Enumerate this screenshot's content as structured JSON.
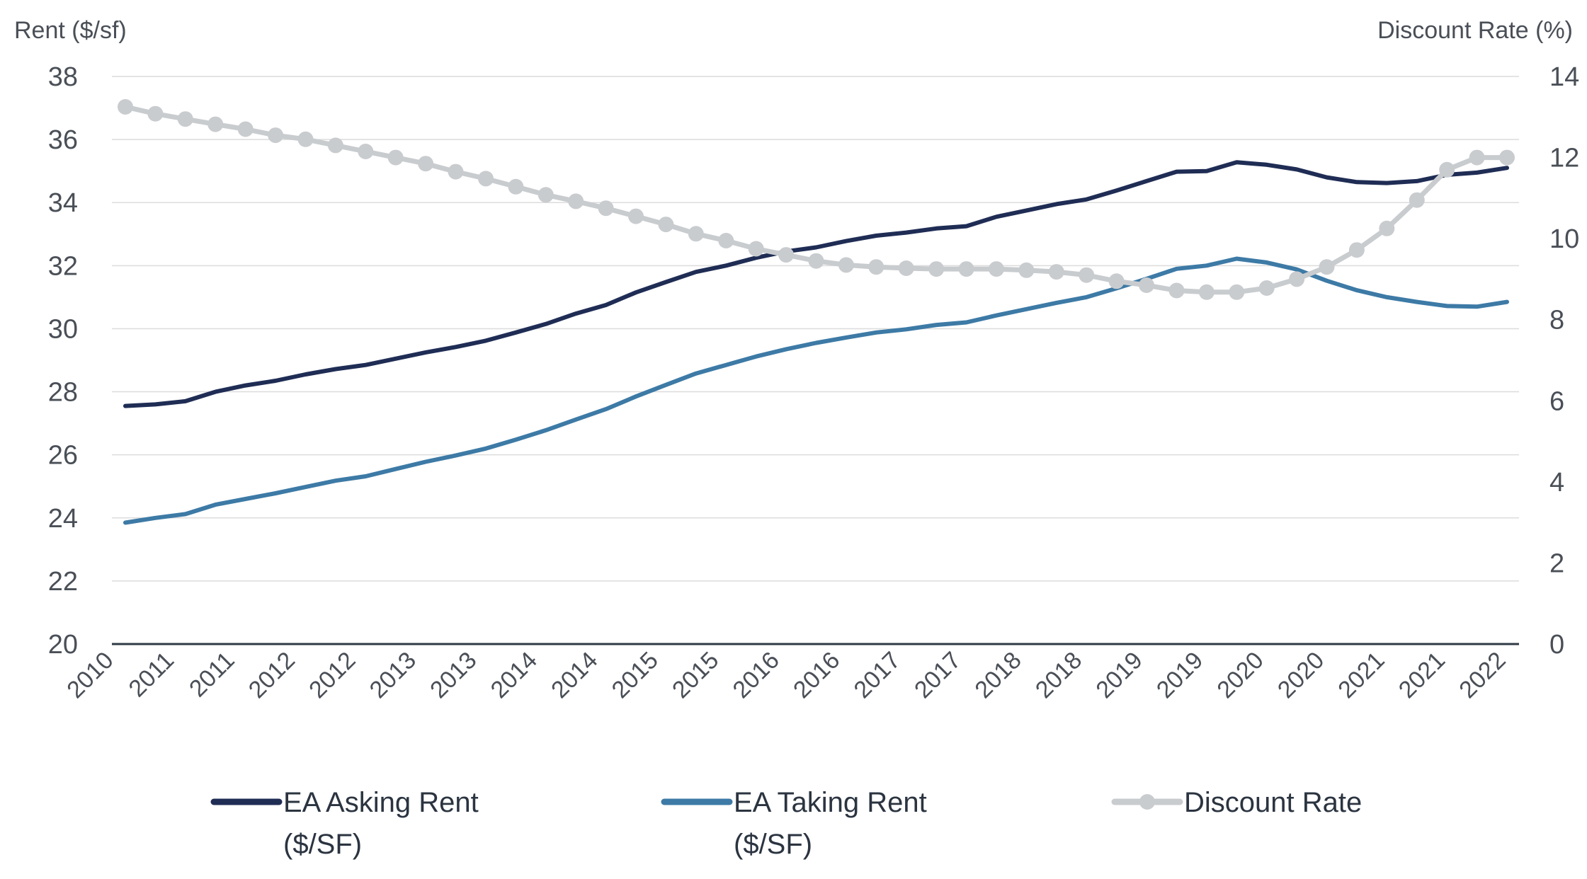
{
  "chart_data": {
    "type": "line",
    "title": "",
    "ylabel_left": "Rent ($/sf)",
    "ylabel_right": "Discount Rate (%)",
    "ylim_left": [
      20,
      38
    ],
    "ylim_right": [
      0,
      14
    ],
    "yticks_left": [
      "20",
      "22",
      "24",
      "26",
      "28",
      "30",
      "32",
      "34",
      "36",
      "38"
    ],
    "yticks_right": [
      "0",
      "2",
      "4",
      "6",
      "8",
      "10",
      "12",
      "14"
    ],
    "x_tick_labels": [
      "2010",
      "2011",
      "2011",
      "2012",
      "2012",
      "2013",
      "2013",
      "2014",
      "2014",
      "2015",
      "2015",
      "2016",
      "2016",
      "2017",
      "2017",
      "2018",
      "2018",
      "2019",
      "2019",
      "2020",
      "2020",
      "2021",
      "2021",
      "2022"
    ],
    "grid": true,
    "legend_position": "bottom",
    "series": [
      {
        "name": "EA Asking Rent ($/SF)",
        "legend_line1": "EA Asking Rent",
        "legend_line2": "($/SF)",
        "axis": "left",
        "color": "#1f2d55",
        "markers": false,
        "values": [
          27.55,
          27.6,
          27.7,
          28.0,
          28.2,
          28.35,
          28.55,
          28.72,
          28.85,
          29.05,
          29.25,
          29.42,
          29.62,
          29.88,
          30.15,
          30.48,
          30.75,
          31.15,
          31.48,
          31.8,
          32.0,
          32.25,
          32.45,
          32.58,
          32.78,
          32.95,
          33.05,
          33.18,
          33.25,
          33.55,
          33.75,
          33.95,
          34.1,
          34.38,
          34.68,
          34.98,
          35.0,
          35.28,
          35.2,
          35.05,
          34.8,
          34.65,
          34.62,
          34.68,
          34.88,
          34.95,
          35.1
        ]
      },
      {
        "name": "EA Taking Rent ($/SF)",
        "legend_line1": "EA Taking Rent",
        "legend_line2": "($/SF)",
        "axis": "left",
        "color": "#3d7aa6",
        "markers": false,
        "values": [
          23.85,
          24.0,
          24.12,
          24.42,
          24.6,
          24.78,
          24.98,
          25.18,
          25.32,
          25.55,
          25.78,
          25.98,
          26.2,
          26.48,
          26.78,
          27.12,
          27.45,
          27.85,
          28.22,
          28.58,
          28.85,
          29.12,
          29.35,
          29.55,
          29.72,
          29.88,
          29.98,
          30.12,
          30.2,
          30.42,
          30.62,
          30.82,
          31.0,
          31.28,
          31.58,
          31.9,
          32.0,
          32.22,
          32.1,
          31.88,
          31.52,
          31.22,
          31.0,
          30.85,
          30.72,
          30.7,
          30.85
        ]
      },
      {
        "name": "Discount Rate",
        "legend_line1": "Discount Rate",
        "legend_line2": "",
        "axis": "right",
        "color": "#c9cccf",
        "markers": true,
        "values": [
          13.25,
          13.08,
          12.95,
          12.82,
          12.7,
          12.55,
          12.45,
          12.3,
          12.15,
          12.0,
          11.85,
          11.65,
          11.48,
          11.28,
          11.08,
          10.92,
          10.75,
          10.55,
          10.35,
          10.12,
          9.95,
          9.75,
          9.6,
          9.45,
          9.35,
          9.3,
          9.27,
          9.25,
          9.25,
          9.25,
          9.22,
          9.18,
          9.1,
          8.95,
          8.85,
          8.72,
          8.68,
          8.68,
          8.78,
          9.0,
          9.3,
          9.72,
          10.25,
          10.95,
          11.7,
          12.0,
          12.0
        ]
      }
    ]
  }
}
